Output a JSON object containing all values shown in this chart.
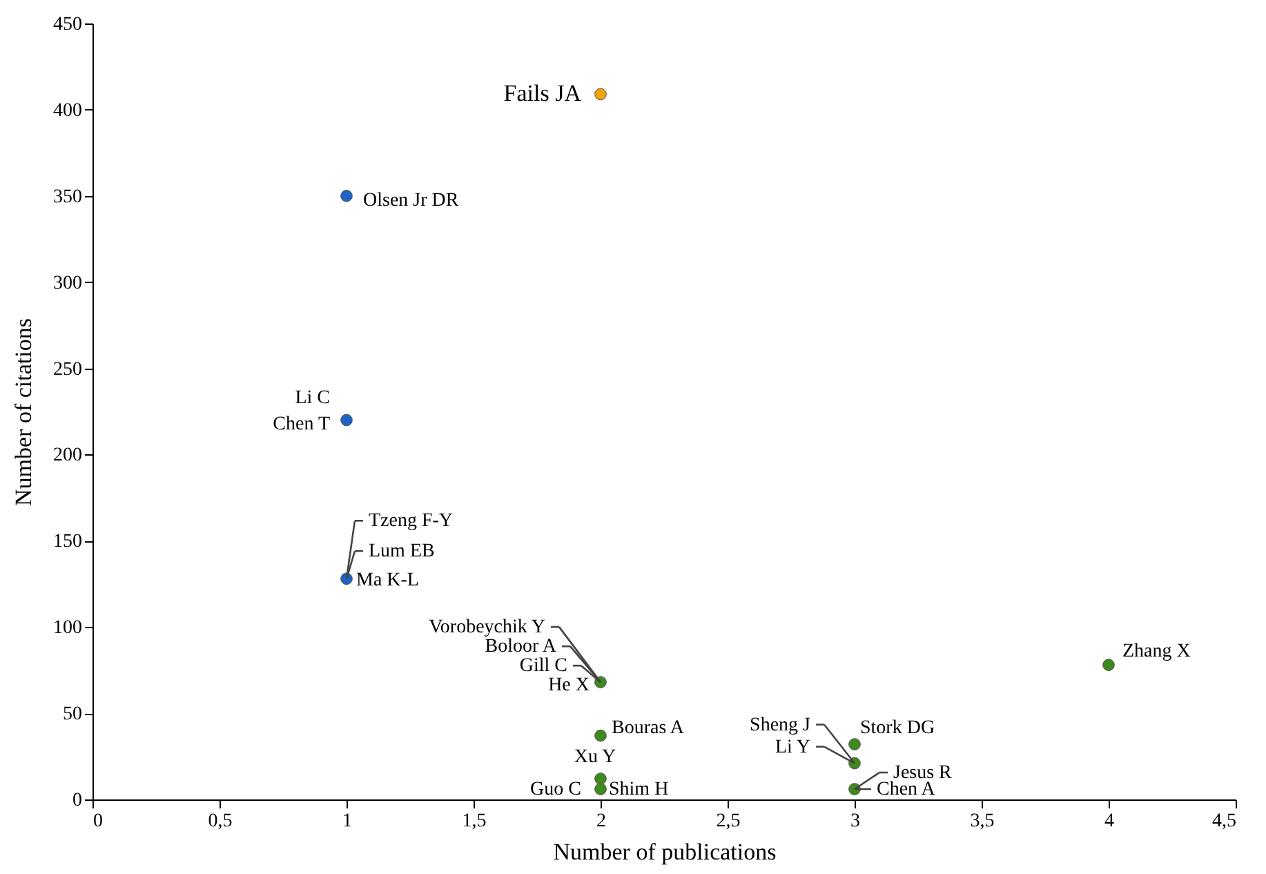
{
  "chart_data": {
    "type": "scatter",
    "xlabel": "Number of publications",
    "ylabel": "Number of citations",
    "xlim": [
      0,
      4.5
    ],
    "ylim": [
      0,
      450
    ],
    "xticks": [
      0,
      {
        "value": 0.5,
        "label": "0,5"
      },
      1,
      {
        "value": 1.5,
        "label": "1,5"
      },
      2,
      {
        "value": 2.5,
        "label": "2,5"
      },
      3,
      {
        "value": 3.5,
        "label": "3,5"
      },
      4,
      {
        "value": 4.5,
        "label": "4,5"
      }
    ],
    "yticks": [
      0,
      50,
      100,
      150,
      200,
      250,
      300,
      350,
      400,
      450
    ],
    "grid": false,
    "marker": "circle",
    "series": [
      {
        "color": "#f0a30a",
        "x": [
          2
        ],
        "values": [
          409
        ]
      },
      {
        "color": "#1f63c6",
        "x": [
          1,
          1,
          1
        ],
        "values": [
          350,
          220,
          128
        ]
      },
      {
        "color": "#3f8a1e",
        "x": [
          2,
          2,
          2,
          2,
          4,
          3,
          3,
          3
        ],
        "values": [
          68,
          37,
          12,
          6,
          78,
          32,
          21,
          6
        ]
      }
    ],
    "annotations": [
      {
        "text": "Fails JA",
        "x": 2,
        "y": 409
      },
      {
        "text": "Olsen Jr DR",
        "x": 1,
        "y": 350
      },
      {
        "text": "Li C",
        "x": 1,
        "y": 220
      },
      {
        "text": "Chen T",
        "x": 1,
        "y": 220
      },
      {
        "text": "Tzeng F-Y",
        "x": 1,
        "y": 128
      },
      {
        "text": "Lum EB",
        "x": 1,
        "y": 128
      },
      {
        "text": "Ma K-L",
        "x": 1,
        "y": 128
      },
      {
        "text": "Vorobeychik Y",
        "x": 2,
        "y": 68
      },
      {
        "text": "Boloor A",
        "x": 2,
        "y": 68
      },
      {
        "text": "Gill  C",
        "x": 2,
        "y": 68
      },
      {
        "text": "He X",
        "x": 2,
        "y": 68
      },
      {
        "text": "Bouras A",
        "x": 2,
        "y": 37
      },
      {
        "text": "Xu Y",
        "x": 2,
        "y": 12
      },
      {
        "text": "Guo C",
        "x": 2,
        "y": 6
      },
      {
        "text": "Shim H",
        "x": 2,
        "y": 6
      },
      {
        "text": "Zhang X",
        "x": 4,
        "y": 78
      },
      {
        "text": "Stork DG",
        "x": 3,
        "y": 32
      },
      {
        "text": "Sheng J",
        "x": 3,
        "y": 21
      },
      {
        "text": "Li Y",
        "x": 3,
        "y": 21
      },
      {
        "text": "Jesus R",
        "x": 3,
        "y": 6
      },
      {
        "text": "Chen A",
        "x": 3,
        "y": 6
      }
    ]
  }
}
